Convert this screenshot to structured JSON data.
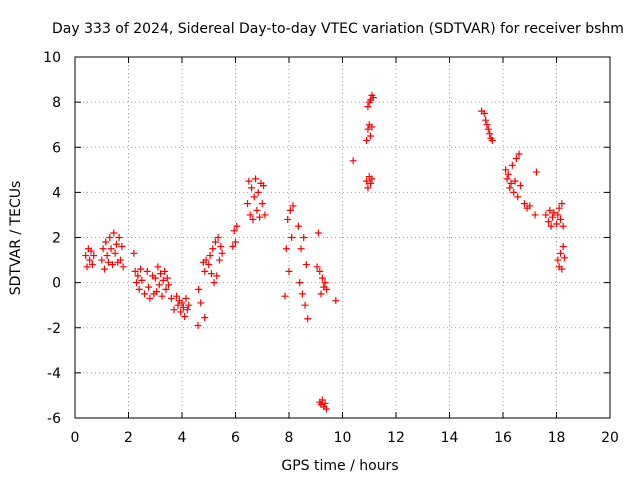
{
  "chart_data": {
    "type": "scatter",
    "title": "Day 333 of 2024, Sidereal Day-to-day VTEC variation (SDTVAR) for receiver bshm",
    "xlabel": "GPS time / hours",
    "ylabel": "SDTVAR / TECUs",
    "xlim": [
      0,
      20
    ],
    "ylim": [
      -6,
      10
    ],
    "xticks": [
      0,
      2,
      4,
      6,
      8,
      10,
      12,
      14,
      16,
      18,
      20
    ],
    "yticks": [
      -6,
      -4,
      -2,
      0,
      2,
      4,
      6,
      8,
      10
    ],
    "xtick_labels": [
      "0",
      "2",
      "4",
      "6",
      "8",
      "10",
      "12",
      "14",
      "16",
      "18",
      "20"
    ],
    "ytick_labels": [
      "-6",
      "-4",
      "-2",
      "0",
      "2",
      "4",
      "6",
      "8",
      "10"
    ],
    "grid": true,
    "marker": "plus",
    "color": "#ff0000",
    "series": [
      {
        "name": "SDTVAR",
        "points": [
          [
            0.4,
            1.2
          ],
          [
            0.45,
            0.7
          ],
          [
            0.5,
            1.5
          ],
          [
            0.55,
            1.0
          ],
          [
            0.6,
            1.4
          ],
          [
            0.65,
            0.8
          ],
          [
            0.7,
            1.2
          ],
          [
            1.0,
            1.0
          ],
          [
            1.05,
            1.5
          ],
          [
            1.1,
            0.6
          ],
          [
            1.15,
            1.8
          ],
          [
            1.2,
            1.2
          ],
          [
            1.25,
            0.9
          ],
          [
            1.3,
            2.0
          ],
          [
            1.35,
            1.5
          ],
          [
            1.4,
            0.8
          ],
          [
            1.45,
            2.2
          ],
          [
            1.5,
            1.3
          ],
          [
            1.55,
            1.7
          ],
          [
            1.6,
            0.9
          ],
          [
            1.65,
            2.0
          ],
          [
            1.7,
            1.0
          ],
          [
            1.75,
            1.6
          ],
          [
            1.8,
            0.7
          ],
          [
            2.2,
            1.3
          ],
          [
            2.25,
            0.5
          ],
          [
            2.3,
            0.0
          ],
          [
            2.35,
            0.3
          ],
          [
            2.4,
            -0.3
          ],
          [
            2.45,
            0.6
          ],
          [
            2.5,
            0.1
          ],
          [
            2.6,
            -0.5
          ],
          [
            2.7,
            0.5
          ],
          [
            2.75,
            -0.2
          ],
          [
            2.8,
            -0.7
          ],
          [
            2.9,
            0.3
          ],
          [
            2.95,
            -0.5
          ],
          [
            3.0,
            0.2
          ],
          [
            3.05,
            -0.4
          ],
          [
            3.1,
            0.7
          ],
          [
            3.15,
            -0.1
          ],
          [
            3.2,
            0.4
          ],
          [
            3.25,
            -0.6
          ],
          [
            3.3,
            0.1
          ],
          [
            3.35,
            0.5
          ],
          [
            3.4,
            -0.3
          ],
          [
            3.45,
            0.2
          ],
          [
            3.5,
            -0.1
          ],
          [
            3.6,
            -0.7
          ],
          [
            3.7,
            -1.2
          ],
          [
            3.8,
            -0.6
          ],
          [
            3.85,
            -1.0
          ],
          [
            3.9,
            -0.8
          ],
          [
            3.95,
            -1.3
          ],
          [
            4.0,
            -0.9
          ],
          [
            4.05,
            -1.1
          ],
          [
            4.1,
            -1.5
          ],
          [
            4.15,
            -0.7
          ],
          [
            4.2,
            -1.2
          ],
          [
            4.25,
            -1.0
          ],
          [
            4.6,
            -1.9
          ],
          [
            4.62,
            -0.3
          ],
          [
            4.7,
            -0.9
          ],
          [
            4.85,
            -1.55
          ],
          [
            4.8,
            0.9
          ],
          [
            4.85,
            0.5
          ],
          [
            4.9,
            1.0
          ],
          [
            5.0,
            0.8
          ],
          [
            5.05,
            1.2
          ],
          [
            5.1,
            0.4
          ],
          [
            5.15,
            1.5
          ],
          [
            5.2,
            0.0
          ],
          [
            5.25,
            1.8
          ],
          [
            5.3,
            0.3
          ],
          [
            5.35,
            2.0
          ],
          [
            5.4,
            1.0
          ],
          [
            5.45,
            1.6
          ],
          [
            5.5,
            1.3
          ],
          [
            5.9,
            1.6
          ],
          [
            5.95,
            2.3
          ],
          [
            6.0,
            1.8
          ],
          [
            6.05,
            2.5
          ],
          [
            6.45,
            3.5
          ],
          [
            6.5,
            4.5
          ],
          [
            6.55,
            3.0
          ],
          [
            6.6,
            4.2
          ],
          [
            6.65,
            2.8
          ],
          [
            6.7,
            3.8
          ],
          [
            6.75,
            4.6
          ],
          [
            6.8,
            3.2
          ],
          [
            6.85,
            4.0
          ],
          [
            6.9,
            2.9
          ],
          [
            6.95,
            4.4
          ],
          [
            7.0,
            3.5
          ],
          [
            7.05,
            4.3
          ],
          [
            7.1,
            3.0
          ],
          [
            7.85,
            -0.6
          ],
          [
            7.9,
            1.5
          ],
          [
            7.95,
            2.8
          ],
          [
            8.0,
            0.5
          ],
          [
            8.05,
            3.2
          ],
          [
            8.1,
            2.0
          ],
          [
            8.15,
            3.4
          ],
          [
            8.35,
            2.5
          ],
          [
            8.4,
            0.0
          ],
          [
            8.45,
            1.5
          ],
          [
            8.5,
            -0.5
          ],
          [
            8.55,
            2.0
          ],
          [
            8.6,
            -1.0
          ],
          [
            8.65,
            0.8
          ],
          [
            8.7,
            -1.6
          ],
          [
            9.1,
            2.2
          ],
          [
            9.15,
            0.5
          ],
          [
            9.2,
            -0.5
          ],
          [
            9.25,
            0.2
          ],
          [
            9.3,
            -0.2
          ],
          [
            9.35,
            0.0
          ],
          [
            9.05,
            0.7
          ],
          [
            9.4,
            -0.3
          ],
          [
            9.15,
            -5.3
          ],
          [
            9.2,
            -5.4
          ],
          [
            9.25,
            -5.2
          ],
          [
            9.3,
            -5.5
          ],
          [
            9.35,
            -5.35
          ],
          [
            9.4,
            -5.6
          ],
          [
            9.75,
            -0.8
          ],
          [
            10.4,
            5.4
          ],
          [
            10.9,
            4.5
          ],
          [
            10.95,
            4.2
          ],
          [
            11.0,
            4.7
          ],
          [
            11.05,
            4.4
          ],
          [
            11.1,
            4.6
          ],
          [
            10.9,
            6.3
          ],
          [
            10.95,
            6.8
          ],
          [
            11.0,
            7.0
          ],
          [
            11.05,
            6.5
          ],
          [
            11.1,
            6.9
          ],
          [
            10.95,
            7.8
          ],
          [
            11.0,
            8.0
          ],
          [
            11.05,
            8.1
          ],
          [
            11.1,
            8.3
          ],
          [
            11.15,
            8.2
          ],
          [
            15.2,
            7.6
          ],
          [
            15.3,
            7.5
          ],
          [
            15.35,
            7.2
          ],
          [
            15.4,
            7.0
          ],
          [
            15.45,
            6.8
          ],
          [
            15.5,
            6.6
          ],
          [
            15.55,
            6.4
          ],
          [
            15.6,
            6.3
          ],
          [
            16.1,
            5.0
          ],
          [
            16.15,
            4.6
          ],
          [
            16.2,
            4.8
          ],
          [
            16.25,
            4.2
          ],
          [
            16.3,
            4.4
          ],
          [
            16.35,
            5.2
          ],
          [
            16.4,
            4.0
          ],
          [
            16.45,
            4.5
          ],
          [
            16.5,
            5.5
          ],
          [
            16.55,
            3.8
          ],
          [
            16.6,
            5.7
          ],
          [
            16.65,
            4.3
          ],
          [
            16.8,
            3.5
          ],
          [
            16.9,
            3.3
          ],
          [
            17.0,
            3.4
          ],
          [
            17.2,
            3.0
          ],
          [
            17.25,
            4.9
          ],
          [
            17.6,
            3.0
          ],
          [
            17.7,
            2.7
          ],
          [
            17.75,
            3.2
          ],
          [
            17.8,
            2.5
          ],
          [
            17.85,
            2.9
          ],
          [
            17.9,
            3.1
          ],
          [
            18.0,
            2.6
          ],
          [
            18.05,
            3.0
          ],
          [
            18.1,
            3.3
          ],
          [
            18.15,
            2.8
          ],
          [
            18.2,
            3.5
          ],
          [
            18.25,
            2.5
          ],
          [
            18.05,
            1.0
          ],
          [
            18.1,
            0.7
          ],
          [
            18.15,
            1.3
          ],
          [
            18.2,
            0.6
          ],
          [
            18.25,
            1.6
          ],
          [
            18.3,
            1.1
          ]
        ]
      }
    ]
  }
}
